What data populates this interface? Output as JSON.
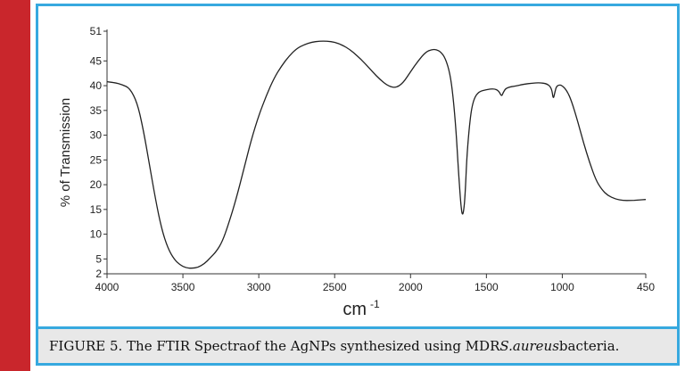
{
  "figure": {
    "caption_prefix": "FIGURE 5. The FTIR Spectraof the AgNPs synthesized using MDR ",
    "caption_italic": "S.aureus",
    "caption_suffix": " bacteria.",
    "accent_color": "#c9262c",
    "border_color": "#37a9df",
    "caption_bg": "#e8e8e8"
  },
  "chart_data": {
    "type": "line",
    "title": "",
    "xlabel": "cm",
    "xlabel_superscript": "-1",
    "ylabel": "% of Transmission",
    "xlim": [
      4000,
      450
    ],
    "x_reversed": true,
    "ylim": [
      2,
      51
    ],
    "x_ticks": [
      4000,
      3500,
      3000,
      2500,
      2000,
      1500,
      1000,
      450
    ],
    "x_tick_labels": [
      "4000",
      "3500",
      "3000",
      "2500",
      "2000",
      "1500",
      "1000",
      "450"
    ],
    "y_ticks": [
      2,
      5,
      10,
      15,
      20,
      25,
      30,
      35,
      40,
      45,
      51
    ],
    "y_tick_labels": [
      "2",
      "5",
      "10",
      "15",
      "20",
      "25",
      "30",
      "35",
      "40",
      "45",
      "51"
    ],
    "grid": false,
    "series": [
      {
        "color": "#222222",
        "points": [
          [
            4000,
            40.8
          ],
          [
            3950,
            40.6
          ],
          [
            3900,
            40.2
          ],
          [
            3850,
            39.5
          ],
          [
            3800,
            36.5
          ],
          [
            3760,
            31.0
          ],
          [
            3720,
            24.0
          ],
          [
            3680,
            17.0
          ],
          [
            3640,
            11.0
          ],
          [
            3600,
            7.2
          ],
          [
            3560,
            5.0
          ],
          [
            3520,
            3.8
          ],
          [
            3480,
            3.2
          ],
          [
            3440,
            3.1
          ],
          [
            3400,
            3.3
          ],
          [
            3360,
            4.0
          ],
          [
            3320,
            5.2
          ],
          [
            3280,
            6.5
          ],
          [
            3240,
            8.5
          ],
          [
            3200,
            12.0
          ],
          [
            3150,
            17.0
          ],
          [
            3100,
            23.0
          ],
          [
            3050,
            29.0
          ],
          [
            3000,
            34.0
          ],
          [
            2950,
            38.0
          ],
          [
            2900,
            41.5
          ],
          [
            2850,
            44.0
          ],
          [
            2800,
            46.0
          ],
          [
            2750,
            47.5
          ],
          [
            2700,
            48.3
          ],
          [
            2650,
            48.8
          ],
          [
            2600,
            49.0
          ],
          [
            2550,
            49.0
          ],
          [
            2500,
            48.8
          ],
          [
            2450,
            48.2
          ],
          [
            2400,
            47.3
          ],
          [
            2350,
            46.0
          ],
          [
            2300,
            44.5
          ],
          [
            2250,
            42.8
          ],
          [
            2200,
            41.2
          ],
          [
            2150,
            40.0
          ],
          [
            2100,
            39.5
          ],
          [
            2050,
            40.5
          ],
          [
            2000,
            42.8
          ],
          [
            1950,
            45.0
          ],
          [
            1900,
            46.8
          ],
          [
            1860,
            47.3
          ],
          [
            1830,
            47.3
          ],
          [
            1800,
            46.8
          ],
          [
            1770,
            45.5
          ],
          [
            1740,
            42.5
          ],
          [
            1720,
            38.0
          ],
          [
            1700,
            31.0
          ],
          [
            1685,
            23.0
          ],
          [
            1670,
            16.5
          ],
          [
            1660,
            13.8
          ],
          [
            1650,
            14.5
          ],
          [
            1640,
            18.0
          ],
          [
            1630,
            25.0
          ],
          [
            1615,
            31.0
          ],
          [
            1600,
            35.0
          ],
          [
            1580,
            37.5
          ],
          [
            1550,
            38.8
          ],
          [
            1500,
            39.2
          ],
          [
            1450,
            39.4
          ],
          [
            1420,
            39.0
          ],
          [
            1400,
            37.8
          ],
          [
            1390,
            38.6
          ],
          [
            1370,
            39.6
          ],
          [
            1300,
            40.0
          ],
          [
            1250,
            40.3
          ],
          [
            1200,
            40.5
          ],
          [
            1150,
            40.6
          ],
          [
            1100,
            40.4
          ],
          [
            1070,
            39.5
          ],
          [
            1060,
            37.2
          ],
          [
            1050,
            38.5
          ],
          [
            1040,
            39.8
          ],
          [
            1020,
            40.2
          ],
          [
            1000,
            40.0
          ],
          [
            970,
            39.0
          ],
          [
            940,
            37.0
          ],
          [
            900,
            33.0
          ],
          [
            860,
            28.5
          ],
          [
            820,
            24.5
          ],
          [
            780,
            21.0
          ],
          [
            740,
            19.0
          ],
          [
            700,
            17.8
          ],
          [
            650,
            17.1
          ],
          [
            600,
            16.8
          ],
          [
            550,
            16.8
          ],
          [
            500,
            16.9
          ],
          [
            450,
            17.0
          ]
        ]
      }
    ]
  }
}
